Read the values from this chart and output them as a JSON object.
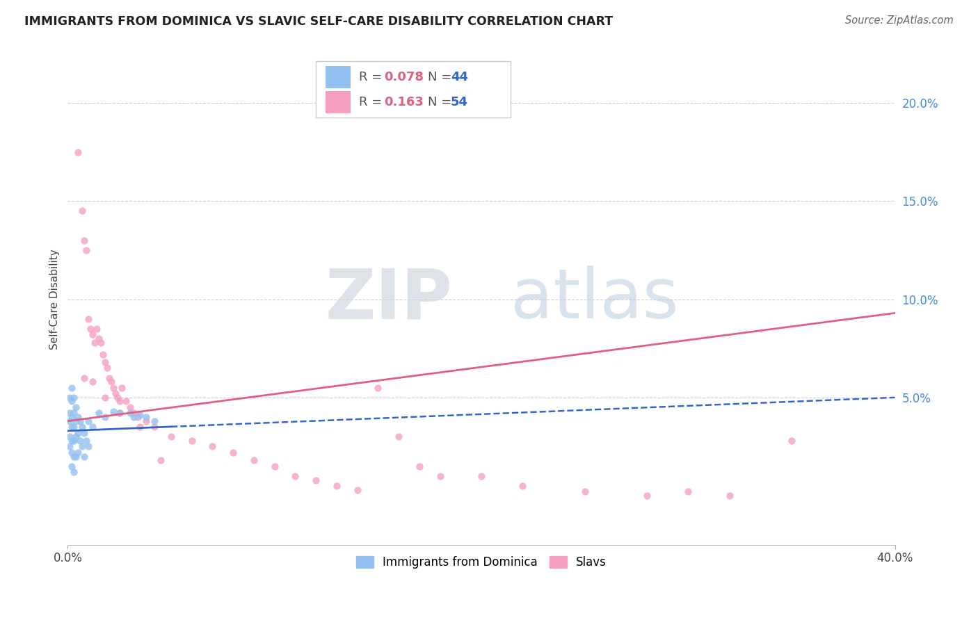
{
  "title": "IMMIGRANTS FROM DOMINICA VS SLAVIC SELF-CARE DISABILITY CORRELATION CHART",
  "source": "Source: ZipAtlas.com",
  "ylabel": "Self-Care Disability",
  "y_tick_labels": [
    "20.0%",
    "15.0%",
    "10.0%",
    "5.0%"
  ],
  "y_tick_vals": [
    0.2,
    0.15,
    0.1,
    0.05
  ],
  "x_range": [
    0.0,
    0.4
  ],
  "y_range": [
    -0.025,
    0.225
  ],
  "legend_blue_R": "0.078",
  "legend_blue_N": "44",
  "legend_pink_R": "0.163",
  "legend_pink_N": "54",
  "legend_label_blue": "Immigrants from Dominica",
  "legend_label_pink": "Slavs",
  "blue_color": "#92C0F0",
  "pink_color": "#F5A0C0",
  "blue_line_color": "#3366CC",
  "pink_line_color": "#E06080",
  "blue_line_solid_end": 0.05,
  "blue_line_start_y": 0.033,
  "blue_line_end_y": 0.05,
  "pink_line_start_y": 0.038,
  "pink_line_end_y": 0.093,
  "blue_scatter_x": [
    0.001,
    0.001,
    0.001,
    0.001,
    0.001,
    0.002,
    0.002,
    0.002,
    0.002,
    0.002,
    0.002,
    0.002,
    0.003,
    0.003,
    0.003,
    0.003,
    0.003,
    0.003,
    0.004,
    0.004,
    0.004,
    0.004,
    0.005,
    0.005,
    0.005,
    0.006,
    0.006,
    0.007,
    0.007,
    0.008,
    0.008,
    0.009,
    0.01,
    0.01,
    0.012,
    0.015,
    0.018,
    0.022,
    0.025,
    0.03,
    0.032,
    0.035,
    0.038,
    0.042
  ],
  "blue_scatter_y": [
    0.05,
    0.042,
    0.038,
    0.03,
    0.025,
    0.055,
    0.048,
    0.04,
    0.035,
    0.028,
    0.022,
    0.015,
    0.05,
    0.042,
    0.035,
    0.028,
    0.02,
    0.012,
    0.045,
    0.038,
    0.03,
    0.02,
    0.04,
    0.032,
    0.022,
    0.038,
    0.028,
    0.035,
    0.025,
    0.032,
    0.02,
    0.028,
    0.038,
    0.025,
    0.035,
    0.042,
    0.04,
    0.043,
    0.042,
    0.042,
    0.04,
    0.041,
    0.04,
    0.038
  ],
  "pink_scatter_x": [
    0.005,
    0.007,
    0.008,
    0.009,
    0.01,
    0.011,
    0.012,
    0.013,
    0.014,
    0.015,
    0.016,
    0.017,
    0.018,
    0.019,
    0.02,
    0.021,
    0.022,
    0.023,
    0.024,
    0.025,
    0.026,
    0.028,
    0.03,
    0.032,
    0.034,
    0.038,
    0.042,
    0.05,
    0.06,
    0.07,
    0.08,
    0.09,
    0.1,
    0.11,
    0.12,
    0.13,
    0.14,
    0.15,
    0.16,
    0.17,
    0.18,
    0.2,
    0.22,
    0.25,
    0.28,
    0.3,
    0.32,
    0.35,
    0.008,
    0.012,
    0.018,
    0.025,
    0.035,
    0.045
  ],
  "pink_scatter_y": [
    0.175,
    0.145,
    0.13,
    0.125,
    0.09,
    0.085,
    0.082,
    0.078,
    0.085,
    0.08,
    0.078,
    0.072,
    0.068,
    0.065,
    0.06,
    0.058,
    0.055,
    0.052,
    0.05,
    0.048,
    0.055,
    0.048,
    0.045,
    0.042,
    0.04,
    0.038,
    0.035,
    0.03,
    0.028,
    0.025,
    0.022,
    0.018,
    0.015,
    0.01,
    0.008,
    0.005,
    0.003,
    0.055,
    0.03,
    0.015,
    0.01,
    0.01,
    0.005,
    0.002,
    0.0,
    0.002,
    0.0,
    0.028,
    0.06,
    0.058,
    0.05,
    0.042,
    0.035,
    0.018
  ],
  "watermark_zip": "ZIP",
  "watermark_atlas": "atlas",
  "background_color": "#ffffff",
  "grid_color": "#cccccc"
}
